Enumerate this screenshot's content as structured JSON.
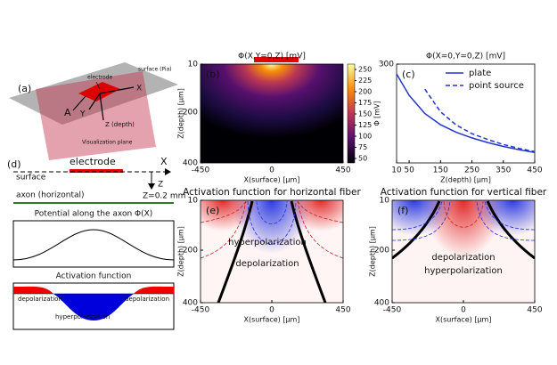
{
  "panel_a": {
    "label": "(a)",
    "surface": "surface (Pia)",
    "electrode": "electrode",
    "a": "A",
    "x": "X",
    "y": "Y",
    "z": "Z (depth)",
    "plane": "Visualization plane"
  },
  "panel_d": {
    "label": "(d)",
    "electrode": "electrode",
    "x": "X",
    "surface": "surface",
    "z": "Z",
    "z_value": "Z=0.2 mm",
    "axon": "axon (horizontal)",
    "potential_title": "Potential along the axon Φ(X)",
    "activation_title": "Activation function",
    "depol_left": "depolarization",
    "depol_right": "depolarization",
    "hyperpol": "hyperpolarization"
  },
  "chart_data": [
    {
      "type": "heatmap",
      "label": "(b)",
      "label_color": "#ffffff",
      "title": "Φ(X,Y=0,Z) [mV]",
      "xlabel": "X(surface) [μm]",
      "ylabel": "Z(depth) [μm]",
      "xlim": [
        -450,
        450
      ],
      "ylim": [
        10,
        400
      ],
      "y_inverted": true,
      "xticks": [
        -450,
        0,
        450
      ],
      "yticks": [
        10,
        200,
        400
      ],
      "clim": [
        40,
        262
      ],
      "colorbar_ticks": [
        50,
        75,
        100,
        125,
        150,
        175,
        200,
        225,
        250
      ]
    },
    {
      "type": "line",
      "label": "(c)",
      "label_color": "#000000",
      "title": "Φ(X=0,Y=0,Z) [mV]",
      "xlabel": "Z(depth) [μm]",
      "ylabel": "Φ [mV]",
      "xlim": [
        10,
        450
      ],
      "ylim": [
        0,
        300
      ],
      "xticks": [
        10,
        50,
        150,
        250,
        350,
        450
      ],
      "yticks": [
        300
      ],
      "x": [
        10,
        50,
        100,
        150,
        200,
        250,
        300,
        350,
        400,
        450
      ],
      "series": [
        {
          "name": "plate",
          "color": "#2233cc",
          "dash": false,
          "values": [
            270,
            205,
            150,
            116,
            93,
            76,
            62,
            50,
            40,
            32
          ]
        },
        {
          "name": "point source",
          "color": "#2233cc",
          "dash": true,
          "values": [
            null,
            null,
            224,
            155,
            115,
            89,
            71,
            56,
            44,
            34
          ]
        }
      ],
      "legend": "upper right"
    },
    {
      "type": "heatmap",
      "label": "(e)",
      "label_color": "#000000",
      "title": "Activation function for horizontal fiber",
      "xlabel": "X(surface) [μm]",
      "ylabel": "Z(depth) [μm]",
      "xlim": [
        -450,
        450
      ],
      "ylim": [
        10,
        400
      ],
      "y_inverted": true,
      "xticks": [
        -450,
        0,
        450
      ],
      "yticks": [
        10,
        200,
        400
      ],
      "annotations": [
        "hyperpolarization",
        "depolarization"
      ]
    },
    {
      "type": "heatmap",
      "label": "(f)",
      "label_color": "#000000",
      "title": "Activation function for vertical fiber",
      "xlabel": "X(surface) [μm]",
      "ylabel": "Z(depth) [μm]",
      "xlim": [
        -450,
        450
      ],
      "ylim": [
        10,
        400
      ],
      "y_inverted": true,
      "xticks": [
        -450,
        0,
        450
      ],
      "yticks": [
        10,
        200,
        400
      ],
      "annotations": [
        "depolarization",
        "hyperpolarization"
      ]
    }
  ]
}
